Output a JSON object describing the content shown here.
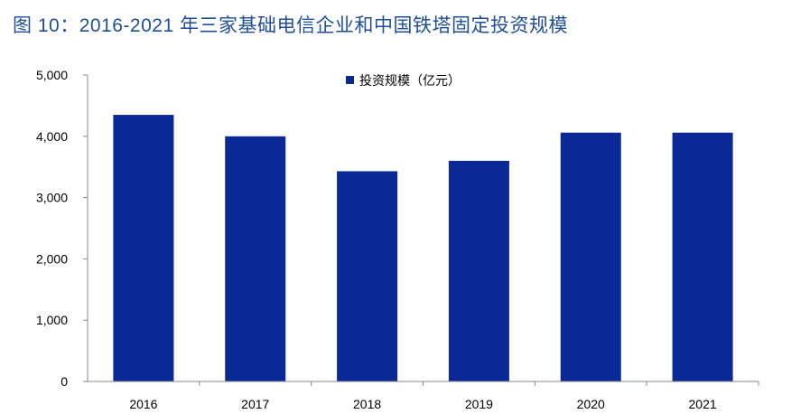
{
  "figure": {
    "title": "图 10：2016-2021 年三家基础电信企业和中国铁塔固定投资规模"
  },
  "chart_data": {
    "type": "bar",
    "title": "图 10：2016-2021 年三家基础电信企业和中国铁塔固定投资规模",
    "xlabel": "",
    "ylabel": "",
    "categories": [
      "2016",
      "2017",
      "2018",
      "2019",
      "2020",
      "2021"
    ],
    "series": [
      {
        "name": "投资规模（亿元）",
        "values": [
          4350,
          4000,
          3430,
          3600,
          4060,
          4060
        ]
      }
    ],
    "ylim": [
      0,
      5000
    ],
    "yticks": [
      0,
      1000,
      2000,
      3000,
      4000,
      5000
    ],
    "ytick_labels": [
      "0",
      "1,000",
      "2,000",
      "3,000",
      "4,000",
      "5,000"
    ],
    "legend_position": "top-center",
    "grid": false,
    "colors": {
      "bar": "#0a2896",
      "axis": "#888888"
    }
  }
}
